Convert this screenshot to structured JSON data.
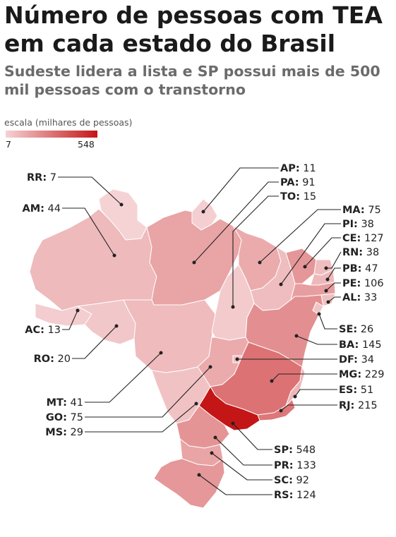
{
  "title": "Número de pessoas com TEA em cada estado do Brasil",
  "subtitle": "Sudeste lidera a lista e SP possui mais de 500 mil pessoas com o transtorno",
  "scale": {
    "label": "escala (milhares de pessoas)",
    "min": "7",
    "max": "548",
    "min_value": 7,
    "max_value": 548,
    "color_low": "#f5d3d5",
    "color_high": "#c41617"
  },
  "states": [
    {
      "abbr": "AP:",
      "value": 11
    },
    {
      "abbr": "PA:",
      "value": 91
    },
    {
      "abbr": "TO:",
      "value": 15
    },
    {
      "abbr": "MA:",
      "value": 75
    },
    {
      "abbr": "PI:",
      "value": 38
    },
    {
      "abbr": "CE:",
      "value": 127
    },
    {
      "abbr": "RN:",
      "value": 38
    },
    {
      "abbr": "PB:",
      "value": 47
    },
    {
      "abbr": "PE:",
      "value": 106
    },
    {
      "abbr": "AL:",
      "value": 33
    },
    {
      "abbr": "SE:",
      "value": 26
    },
    {
      "abbr": "BA:",
      "value": 145
    },
    {
      "abbr": "DF:",
      "value": 34
    },
    {
      "abbr": "MG:",
      "value": 229
    },
    {
      "abbr": "ES:",
      "value": 51
    },
    {
      "abbr": "RJ:",
      "value": 215
    },
    {
      "abbr": "SP:",
      "value": 548
    },
    {
      "abbr": "PR:",
      "value": 133
    },
    {
      "abbr": "SC:",
      "value": 92
    },
    {
      "abbr": "RS:",
      "value": 124
    },
    {
      "abbr": "RR:",
      "value": 7
    },
    {
      "abbr": "AM:",
      "value": 44
    },
    {
      "abbr": "AC:",
      "value": 13
    },
    {
      "abbr": "RO:",
      "value": 20
    },
    {
      "abbr": "MT:",
      "value": 41
    },
    {
      "abbr": "GO:",
      "value": 75
    },
    {
      "abbr": "MS:",
      "value": 29
    }
  ]
}
